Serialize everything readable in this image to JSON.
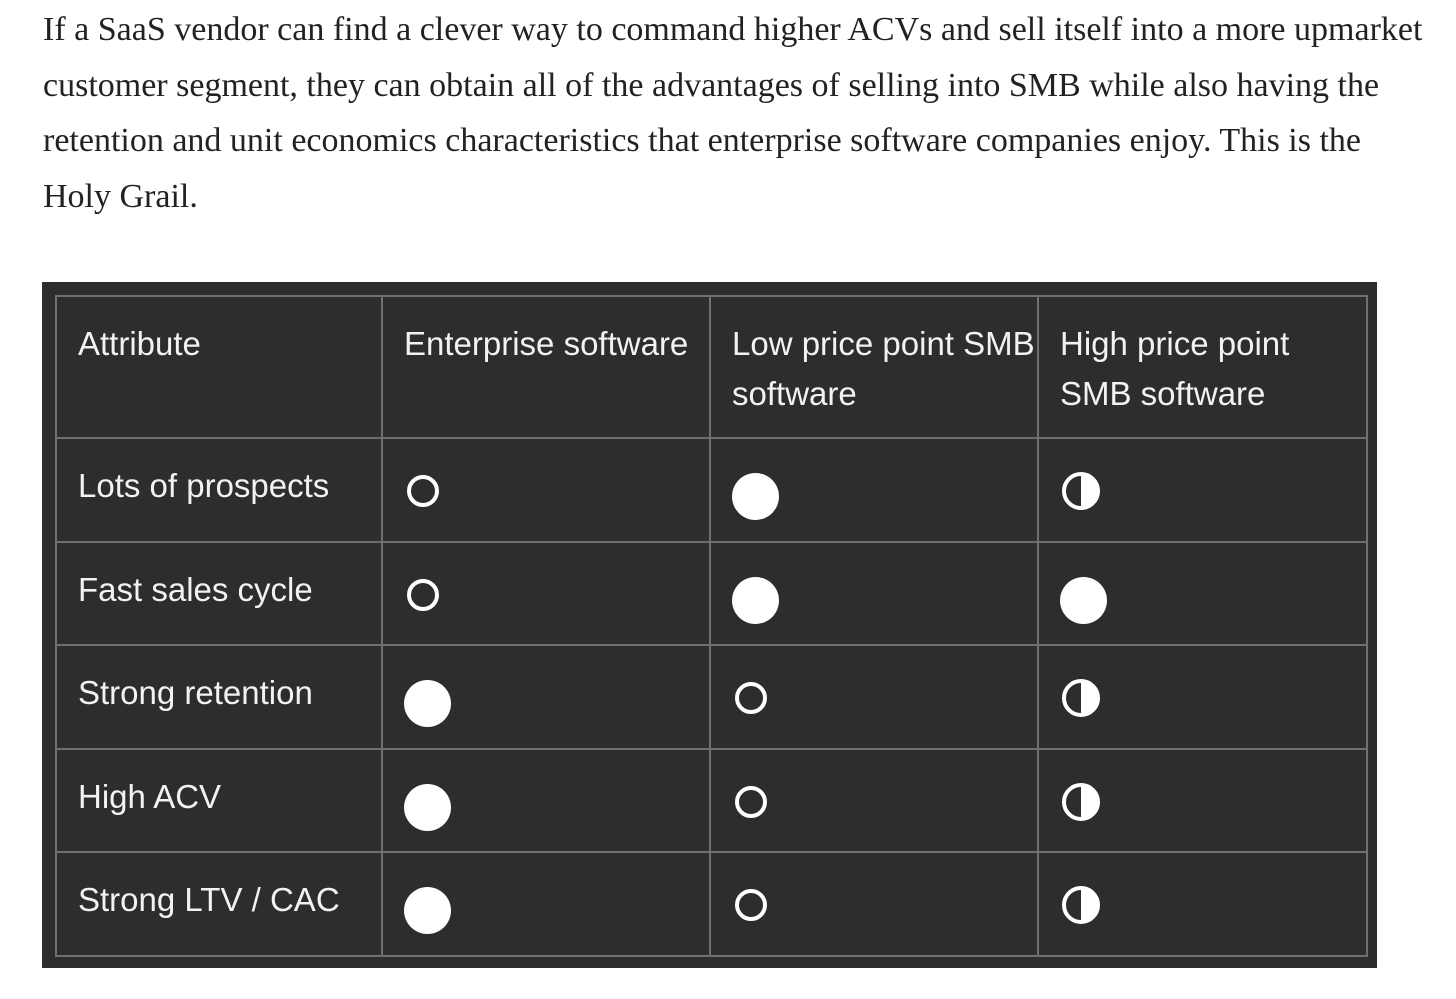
{
  "article": {
    "paragraph": "If a SaaS vendor can find a clever way to command higher ACVs and sell itself into a more upmarket customer segment, they can obtain all of the advantages of selling into SMB while also having the retention and unit economics characteristics that enterprise software companies enjoy. This is the Holy Grail."
  },
  "table": {
    "headers": [
      "Attribute",
      "Enterprise software",
      "Low price point SMB software",
      "High price point SMB software"
    ],
    "legend_icons": {
      "empty": "empty-circle-icon",
      "half": "half-filled-circle-icon",
      "full": "filled-circle-icon"
    },
    "rows": [
      {
        "attribute": "Lots of prospects",
        "values": [
          "empty",
          "full",
          "half"
        ]
      },
      {
        "attribute": "Fast sales cycle",
        "values": [
          "empty",
          "full",
          "full"
        ]
      },
      {
        "attribute": "Strong retention",
        "values": [
          "full",
          "empty",
          "half"
        ]
      },
      {
        "attribute": "High ACV",
        "values": [
          "full",
          "empty",
          "half"
        ]
      },
      {
        "attribute": "Strong LTV / CAC",
        "values": [
          "full",
          "empty",
          "half"
        ]
      }
    ],
    "colors": {
      "background": "#2d2d2d",
      "grid": "#6f6f6f",
      "text": "#f2f2f2",
      "symbol": "#ffffff"
    }
  }
}
